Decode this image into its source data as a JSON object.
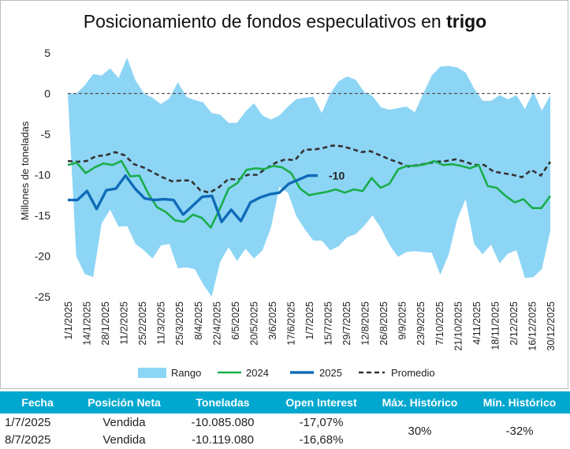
{
  "title_main": "Posicionamiento de fondos especulativos en",
  "title_bold": "trigo",
  "chart_data": {
    "type": "line",
    "ylabel": "Millones de toneladas",
    "ylim": [
      -25,
      5
    ],
    "yticks": [
      5,
      0,
      -5,
      -10,
      -15,
      -20,
      -25
    ],
    "x_tick_labels": [
      "1/1/2025",
      "14/1/2025",
      "28/1/2025",
      "11/2/2025",
      "25/2/2025",
      "11/3/2025",
      "25/3/2025",
      "8/4/2025",
      "22/4/2025",
      "6/5/2025",
      "20/5/2025",
      "3/6/2025",
      "17/6/2025",
      "1/7/2025",
      "15/7/2025",
      "29/7/2025",
      "12/8/2025",
      "26/8/2025",
      "9/9/2025",
      "23/9/2025",
      "7/10/2025",
      "21/10/2025",
      "4/11/2025",
      "18/11/2025",
      "2/12/2025",
      "16/12/2025",
      "30/12/2025"
    ],
    "reference_line": 0,
    "annotation": "-10",
    "legend_position": "bottom",
    "series": [
      {
        "name": "Rango",
        "kind": "band",
        "color": "#8dd5f5",
        "upper": [
          0.0,
          0.0,
          1.0,
          2.4,
          2.2,
          3.1,
          1.9,
          4.4,
          1.6,
          0.0,
          -0.5,
          -1.3,
          -0.6,
          1.4,
          -0.4,
          -0.8,
          -1.1,
          -2.4,
          -2.6,
          -3.6,
          -3.6,
          -2.2,
          -1.2,
          -2.7,
          -3.2,
          -2.7,
          -1.6,
          -0.7,
          -0.5,
          -0.4,
          -2.4,
          0.0,
          1.5,
          2.1,
          1.7,
          0.2,
          -0.3,
          -1.7,
          -2.0,
          -1.8,
          -1.6,
          -2.3,
          0.0,
          2.2,
          3.3,
          3.4,
          3.2,
          2.6,
          0.6,
          -0.9,
          -0.9,
          -0.2,
          -0.7,
          -0.2,
          -1.9,
          0.2,
          -2.1,
          -0.2
        ],
        "lower": [
          0.0,
          -20.0,
          -22.2,
          -22.6,
          -16.0,
          -14.3,
          -16.4,
          -16.3,
          -18.5,
          -19.3,
          -20.3,
          -18.7,
          -18.5,
          -21.5,
          -21.4,
          -21.6,
          -23.5,
          -25.0,
          -20.7,
          -18.9,
          -20.6,
          -19.1,
          -20.3,
          -19.3,
          -16.5,
          -11.5,
          -12.2,
          -15.1,
          -16.7,
          -18.1,
          -18.1,
          -19.3,
          -18.8,
          -17.7,
          -17.3,
          -16.3,
          -15.0,
          -16.6,
          -18.6,
          -20.1,
          -19.5,
          -19.4,
          -19.5,
          -19.6,
          -22.3,
          -19.8,
          -15.5,
          -13.0,
          -18.5,
          -19.8,
          -18.6,
          -20.9,
          -19.7,
          -19.3,
          -22.7,
          -22.6,
          -21.6,
          -16.9
        ]
      },
      {
        "name": "2024",
        "kind": "line",
        "color": "#1aad4b",
        "values": [
          -8.8,
          -8.5,
          -9.8,
          -9.1,
          -8.6,
          -8.8,
          -8.3,
          -10.2,
          -10.1,
          -12.3,
          -14.0,
          -14.6,
          -15.6,
          -15.8,
          -14.9,
          -15.3,
          -16.5,
          -14.2,
          -11.7,
          -11.0,
          -9.4,
          -9.2,
          -9.3,
          -8.9,
          -9.1,
          -9.8,
          -11.7,
          -12.5,
          -12.3,
          -12.1,
          -11.8,
          -12.2,
          -11.8,
          -12.0,
          -10.4,
          -11.6,
          -11.1,
          -9.3,
          -8.9,
          -8.9,
          -8.7,
          -8.3,
          -8.8,
          -8.7,
          -8.9,
          -9.2,
          -8.8,
          -11.4,
          -11.6,
          -12.6,
          -13.4,
          -13.0,
          -14.1,
          -14.1,
          -12.6
        ]
      },
      {
        "name": "2025",
        "kind": "line",
        "color": "#0f6bb8",
        "values": [
          -13.1,
          -13.1,
          -12.0,
          -14.2,
          -11.9,
          -11.7,
          -10.1,
          -11.7,
          -12.9,
          -13.1,
          -13.0,
          -13.1,
          -14.9,
          -13.8,
          -12.7,
          -12.6,
          -15.8,
          -14.3,
          -15.7,
          -13.4,
          -12.8,
          -12.4,
          -12.2,
          -11.1,
          -10.6,
          -10.1,
          -10.1
        ]
      },
      {
        "name": "Promedio",
        "kind": "dashed",
        "color": "#333333",
        "values": [
          -8.3,
          -8.4,
          -8.3,
          -7.7,
          -7.6,
          -7.2,
          -7.6,
          -8.7,
          -9.1,
          -9.7,
          -10.3,
          -10.8,
          -10.7,
          -10.7,
          -11.9,
          -12.2,
          -11.5,
          -10.5,
          -10.6,
          -10.0,
          -10.0,
          -9.2,
          -8.5,
          -8.1,
          -8.2,
          -6.9,
          -6.9,
          -6.7,
          -6.4,
          -6.5,
          -6.8,
          -7.2,
          -7.1,
          -7.6,
          -8.1,
          -8.5,
          -9.0,
          -8.8,
          -8.6,
          -8.4,
          -8.3,
          -8.1,
          -8.4,
          -8.8,
          -8.8,
          -9.6,
          -9.8,
          -10.0,
          -10.3,
          -9.4,
          -10.1,
          -8.4
        ]
      }
    ]
  },
  "table": {
    "headers": [
      "Fecha",
      "Posición Neta",
      "Toneladas",
      "Open Interest",
      "Máx. Histórico",
      "Mín. Histórico"
    ],
    "rows": [
      {
        "fecha": "1/7/2025",
        "posicion": "Vendida",
        "toneladas": "-10.085.080",
        "open_interest": "-17,07%"
      },
      {
        "fecha": "8/7/2025",
        "posicion": "Vendida",
        "toneladas": "-10.119.080",
        "open_interest": "-16,68%"
      }
    ],
    "max_historico": "30%",
    "min_historico": "-32%"
  }
}
